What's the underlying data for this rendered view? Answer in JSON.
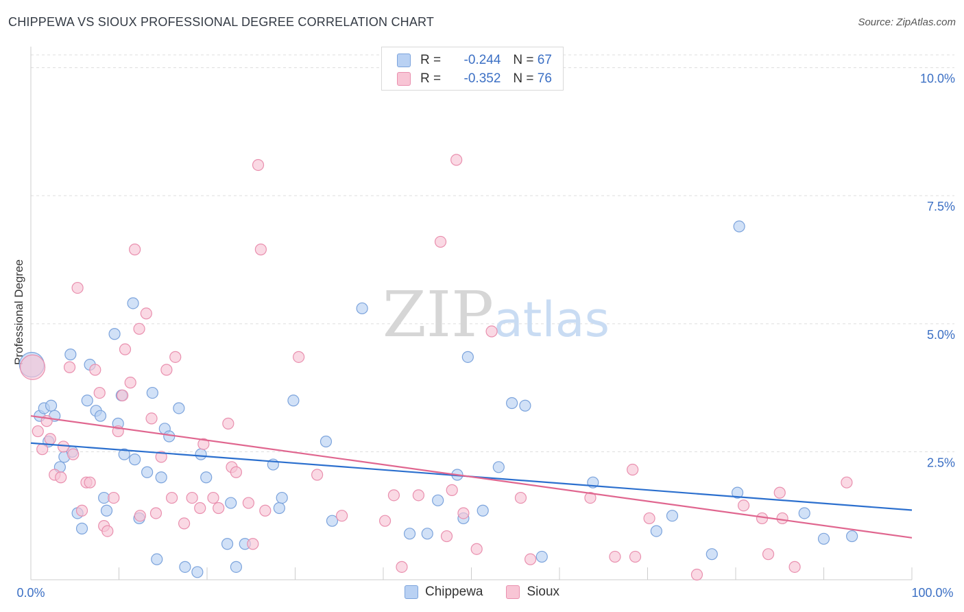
{
  "title": "CHIPPEWA VS SIOUX PROFESSIONAL DEGREE CORRELATION CHART",
  "source": "Source: ZipAtlas.com",
  "watermark": {
    "zip": "ZIP",
    "atlas": "atlas"
  },
  "legend_top": {
    "r_label": "R =",
    "n_label": "N =",
    "rows": [
      {
        "r": "-0.244",
        "n": "67"
      },
      {
        "r": "-0.352",
        "n": "76"
      }
    ]
  },
  "colors": {
    "chippewa_fill": "#b9d1f3",
    "chippewa_stroke": "#7ba3dc",
    "chippewa_line": "#2b6fce",
    "sioux_fill": "#f8c5d5",
    "sioux_stroke": "#e98fae",
    "sioux_line": "#e0668f",
    "axis_text": "#3b6fc4",
    "grid": "#dddddd"
  },
  "chart_data": {
    "type": "scatter",
    "title": "CHIPPEWA VS SIOUX PROFESSIONAL DEGREE CORRELATION CHART",
    "xlabel": "",
    "ylabel": "Professional Degree",
    "xlim": [
      0,
      100
    ],
    "ylim": [
      0,
      10.25
    ],
    "x_tick_labels": [
      "0.0%",
      "100.0%"
    ],
    "y_ticks": [
      2.5,
      5.0,
      7.5,
      10.0
    ],
    "y_tick_labels": [
      "2.5%",
      "5.0%",
      "7.5%",
      "10.0%"
    ],
    "grid": true,
    "legend_position": "bottom-center",
    "series": [
      {
        "name": "Chippewa",
        "r": -0.244,
        "n": 67,
        "trend": [
          [
            0,
            2.67
          ],
          [
            100,
            1.36
          ]
        ],
        "points": [
          [
            0.1,
            4.2
          ],
          [
            1,
            3.2
          ],
          [
            1.5,
            3.35
          ],
          [
            2,
            2.7
          ],
          [
            2.3,
            3.4
          ],
          [
            2.7,
            3.2
          ],
          [
            3.3,
            2.2
          ],
          [
            3.8,
            2.4
          ],
          [
            4.5,
            4.4
          ],
          [
            4.7,
            2.5
          ],
          [
            5.3,
            1.3
          ],
          [
            5.8,
            1.0
          ],
          [
            6.4,
            3.5
          ],
          [
            6.7,
            4.2
          ],
          [
            7.4,
            3.3
          ],
          [
            7.9,
            3.2
          ],
          [
            8.3,
            1.6
          ],
          [
            8.6,
            1.35
          ],
          [
            9.5,
            4.8
          ],
          [
            9.9,
            3.05
          ],
          [
            10.3,
            3.6
          ],
          [
            10.6,
            2.45
          ],
          [
            11.6,
            5.4
          ],
          [
            11.8,
            2.35
          ],
          [
            12.3,
            1.2
          ],
          [
            13.2,
            2.1
          ],
          [
            13.8,
            3.65
          ],
          [
            14.3,
            0.4
          ],
          [
            14.8,
            2.0
          ],
          [
            15.2,
            2.95
          ],
          [
            15.7,
            2.8
          ],
          [
            16.8,
            3.35
          ],
          [
            17.5,
            0.25
          ],
          [
            18.9,
            0.15
          ],
          [
            19.3,
            2.45
          ],
          [
            19.9,
            2.0
          ],
          [
            22.3,
            0.7
          ],
          [
            22.7,
            1.5
          ],
          [
            23.3,
            0.25
          ],
          [
            24.3,
            0.7
          ],
          [
            27.5,
            2.25
          ],
          [
            28.2,
            1.4
          ],
          [
            28.5,
            1.6
          ],
          [
            29.8,
            3.5
          ],
          [
            33.5,
            2.7
          ],
          [
            34.2,
            1.15
          ],
          [
            37.6,
            5.3
          ],
          [
            43,
            0.9
          ],
          [
            45,
            0.9
          ],
          [
            46.2,
            1.55
          ],
          [
            48.4,
            2.05
          ],
          [
            49.1,
            1.2
          ],
          [
            49.6,
            4.35
          ],
          [
            51.3,
            1.35
          ],
          [
            53.1,
            2.2
          ],
          [
            54.6,
            3.45
          ],
          [
            56.1,
            3.4
          ],
          [
            58,
            0.45
          ],
          [
            63.8,
            1.9
          ],
          [
            71,
            0.95
          ],
          [
            72.8,
            1.25
          ],
          [
            77.3,
            0.5
          ],
          [
            80.4,
            6.9
          ],
          [
            80.2,
            1.7
          ],
          [
            87.8,
            1.3
          ],
          [
            90,
            0.8
          ],
          [
            93.2,
            0.85
          ]
        ]
      },
      {
        "name": "Sioux",
        "r": -0.352,
        "n": 76,
        "trend": [
          [
            0,
            3.2
          ],
          [
            100,
            0.82
          ]
        ],
        "points": [
          [
            0.2,
            4.15
          ],
          [
            0.8,
            2.9
          ],
          [
            1.3,
            2.55
          ],
          [
            1.8,
            3.1
          ],
          [
            2.2,
            2.75
          ],
          [
            2.7,
            2.05
          ],
          [
            3.4,
            2.0
          ],
          [
            3.7,
            2.6
          ],
          [
            4.4,
            4.15
          ],
          [
            4.8,
            2.45
          ],
          [
            5.3,
            5.7
          ],
          [
            5.8,
            1.35
          ],
          [
            6.3,
            1.9
          ],
          [
            6.7,
            1.9
          ],
          [
            7.3,
            4.1
          ],
          [
            7.8,
            3.65
          ],
          [
            8.3,
            1.05
          ],
          [
            8.7,
            0.95
          ],
          [
            9.4,
            1.6
          ],
          [
            9.9,
            2.9
          ],
          [
            10.4,
            3.6
          ],
          [
            10.7,
            4.5
          ],
          [
            11.3,
            3.85
          ],
          [
            11.8,
            6.45
          ],
          [
            12.3,
            4.9
          ],
          [
            12.4,
            1.25
          ],
          [
            13.1,
            5.2
          ],
          [
            13.7,
            3.15
          ],
          [
            14.2,
            1.3
          ],
          [
            14.8,
            2.4
          ],
          [
            15.4,
            4.1
          ],
          [
            16,
            1.6
          ],
          [
            16.4,
            4.35
          ],
          [
            17.4,
            1.1
          ],
          [
            18.3,
            1.6
          ],
          [
            19.2,
            1.4
          ],
          [
            19.6,
            2.65
          ],
          [
            20.7,
            1.6
          ],
          [
            21.3,
            1.4
          ],
          [
            22.4,
            3.05
          ],
          [
            22.8,
            2.2
          ],
          [
            23.3,
            2.1
          ],
          [
            24.7,
            1.5
          ],
          [
            25.2,
            0.7
          ],
          [
            25.8,
            8.1
          ],
          [
            26.1,
            6.45
          ],
          [
            26.6,
            1.35
          ],
          [
            30.4,
            4.35
          ],
          [
            32.5,
            2.05
          ],
          [
            35.3,
            1.25
          ],
          [
            40.2,
            1.15
          ],
          [
            41.2,
            1.65
          ],
          [
            42.1,
            0.25
          ],
          [
            44,
            1.65
          ],
          [
            46.5,
            6.6
          ],
          [
            47.2,
            0.85
          ],
          [
            47.8,
            1.75
          ],
          [
            48.3,
            8.2
          ],
          [
            49.1,
            1.3
          ],
          [
            50.6,
            0.6
          ],
          [
            52.3,
            4.85
          ],
          [
            55.6,
            1.6
          ],
          [
            56.7,
            0.4
          ],
          [
            63.5,
            1.6
          ],
          [
            66.3,
            0.45
          ],
          [
            68.3,
            2.15
          ],
          [
            68.6,
            0.45
          ],
          [
            70.2,
            1.2
          ],
          [
            75.6,
            0.1
          ],
          [
            80.9,
            1.45
          ],
          [
            83,
            1.2
          ],
          [
            83.7,
            0.5
          ],
          [
            85,
            1.7
          ],
          [
            85.3,
            1.2
          ],
          [
            86.7,
            0.25
          ],
          [
            92.6,
            1.9
          ]
        ]
      }
    ]
  }
}
